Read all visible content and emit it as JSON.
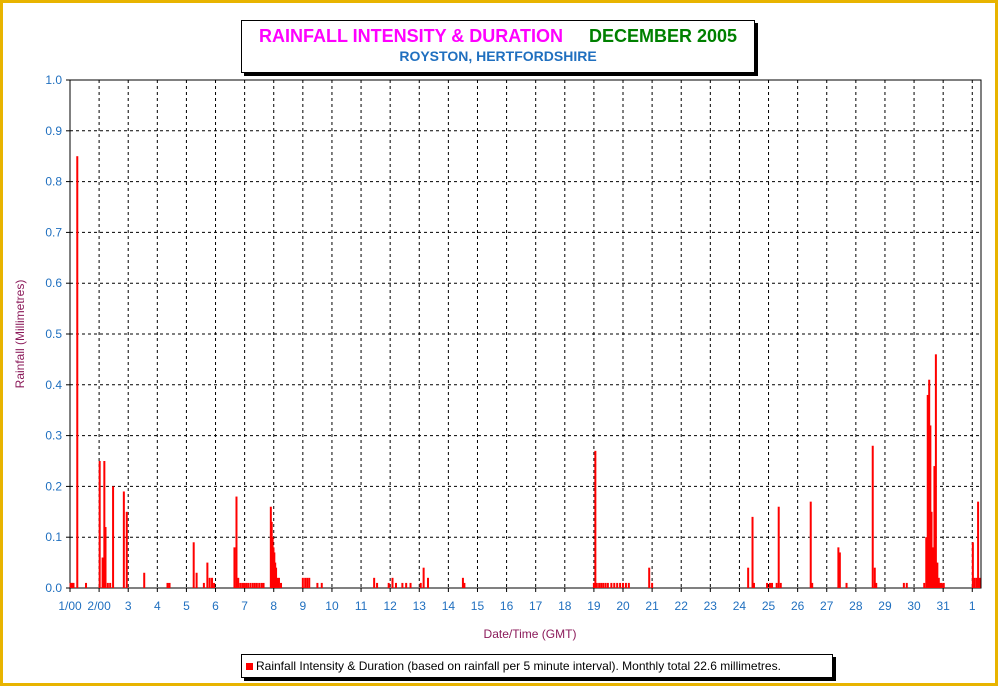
{
  "chart_data": {
    "type": "bar",
    "title": "RAINFALL INTENSITY & DURATION",
    "title_month": "DECEMBER 2005",
    "subtitle": "ROYSTON, HERTFORDSHIRE",
    "xlabel": "Date/Time (GMT)",
    "ylabel": "Rainfall (Millimetres)",
    "ylim": [
      0,
      1.0
    ],
    "xlim": [
      1,
      32.3
    ],
    "y_ticks": [
      "0.0",
      "0.1",
      "0.2",
      "0.3",
      "0.4",
      "0.5",
      "0.6",
      "0.7",
      "0.8",
      "0.9",
      "1.0"
    ],
    "x_ticks": [
      {
        "x": 1,
        "label": "1/00"
      },
      {
        "x": 2,
        "label": "2/00"
      },
      {
        "x": 3,
        "label": "3"
      },
      {
        "x": 4,
        "label": "4"
      },
      {
        "x": 5,
        "label": "5"
      },
      {
        "x": 6,
        "label": "6"
      },
      {
        "x": 7,
        "label": "7"
      },
      {
        "x": 8,
        "label": "8"
      },
      {
        "x": 9,
        "label": "9"
      },
      {
        "x": 10,
        "label": "10"
      },
      {
        "x": 11,
        "label": "11"
      },
      {
        "x": 12,
        "label": "12"
      },
      {
        "x": 13,
        "label": "13"
      },
      {
        "x": 14,
        "label": "14"
      },
      {
        "x": 15,
        "label": "15"
      },
      {
        "x": 16,
        "label": "16"
      },
      {
        "x": 17,
        "label": "17"
      },
      {
        "x": 18,
        "label": "18"
      },
      {
        "x": 19,
        "label": "19"
      },
      {
        "x": 20,
        "label": "20"
      },
      {
        "x": 21,
        "label": "21"
      },
      {
        "x": 22,
        "label": "22"
      },
      {
        "x": 23,
        "label": "23"
      },
      {
        "x": 24,
        "label": "24"
      },
      {
        "x": 25,
        "label": "25"
      },
      {
        "x": 26,
        "label": "26"
      },
      {
        "x": 27,
        "label": "27"
      },
      {
        "x": 28,
        "label": "28"
      },
      {
        "x": 29,
        "label": "29"
      },
      {
        "x": 30,
        "label": "30"
      },
      {
        "x": 31,
        "label": "31"
      },
      {
        "x": 32,
        "label": "1"
      }
    ],
    "grid": true,
    "legend_position": "bottom",
    "series": [
      {
        "name": "Rainfall Intensity & Duration (based on rainfall per 5 minute interval). Monthly total 22.6 millimetres.",
        "color": "#ff0000",
        "points": [
          {
            "x": 1.02,
            "y": 0.01
          },
          {
            "x": 1.05,
            "y": 0.01
          },
          {
            "x": 1.09,
            "y": 0.01
          },
          {
            "x": 1.12,
            "y": 0.01
          },
          {
            "x": 1.25,
            "y": 0.85
          },
          {
            "x": 1.55,
            "y": 0.01
          },
          {
            "x": 2.02,
            "y": 0.25
          },
          {
            "x": 2.12,
            "y": 0.06
          },
          {
            "x": 2.18,
            "y": 0.25
          },
          {
            "x": 2.22,
            "y": 0.12
          },
          {
            "x": 2.3,
            "y": 0.01
          },
          {
            "x": 2.38,
            "y": 0.01
          },
          {
            "x": 2.48,
            "y": 0.2
          },
          {
            "x": 2.85,
            "y": 0.19
          },
          {
            "x": 2.95,
            "y": 0.15
          },
          {
            "x": 3.55,
            "y": 0.03
          },
          {
            "x": 4.35,
            "y": 0.01
          },
          {
            "x": 4.42,
            "y": 0.01
          },
          {
            "x": 5.25,
            "y": 0.09
          },
          {
            "x": 5.35,
            "y": 0.03
          },
          {
            "x": 5.6,
            "y": 0.01
          },
          {
            "x": 5.72,
            "y": 0.05
          },
          {
            "x": 5.8,
            "y": 0.02
          },
          {
            "x": 5.88,
            "y": 0.02
          },
          {
            "x": 5.95,
            "y": 0.01
          },
          {
            "x": 6.65,
            "y": 0.08
          },
          {
            "x": 6.72,
            "y": 0.18
          },
          {
            "x": 6.78,
            "y": 0.02
          },
          {
            "x": 6.85,
            "y": 0.01
          },
          {
            "x": 6.92,
            "y": 0.01
          },
          {
            "x": 6.98,
            "y": 0.01
          },
          {
            "x": 7.05,
            "y": 0.01
          },
          {
            "x": 7.12,
            "y": 0.01
          },
          {
            "x": 7.2,
            "y": 0.01
          },
          {
            "x": 7.28,
            "y": 0.01
          },
          {
            "x": 7.35,
            "y": 0.01
          },
          {
            "x": 7.42,
            "y": 0.01
          },
          {
            "x": 7.5,
            "y": 0.01
          },
          {
            "x": 7.58,
            "y": 0.01
          },
          {
            "x": 7.65,
            "y": 0.01
          },
          {
            "x": 7.9,
            "y": 0.16
          },
          {
            "x": 7.93,
            "y": 0.13
          },
          {
            "x": 7.96,
            "y": 0.1
          },
          {
            "x": 7.99,
            "y": 0.08
          },
          {
            "x": 8.02,
            "y": 0.07
          },
          {
            "x": 8.05,
            "y": 0.05
          },
          {
            "x": 8.08,
            "y": 0.04
          },
          {
            "x": 8.12,
            "y": 0.02
          },
          {
            "x": 8.18,
            "y": 0.02
          },
          {
            "x": 8.25,
            "y": 0.01
          },
          {
            "x": 9.0,
            "y": 0.02
          },
          {
            "x": 9.08,
            "y": 0.02
          },
          {
            "x": 9.15,
            "y": 0.02
          },
          {
            "x": 9.22,
            "y": 0.02
          },
          {
            "x": 9.5,
            "y": 0.01
          },
          {
            "x": 9.65,
            "y": 0.01
          },
          {
            "x": 11.45,
            "y": 0.02
          },
          {
            "x": 11.55,
            "y": 0.01
          },
          {
            "x": 11.95,
            "y": 0.01
          },
          {
            "x": 12.08,
            "y": 0.02
          },
          {
            "x": 12.2,
            "y": 0.01
          },
          {
            "x": 12.42,
            "y": 0.01
          },
          {
            "x": 12.55,
            "y": 0.01
          },
          {
            "x": 12.7,
            "y": 0.01
          },
          {
            "x": 13.05,
            "y": 0.01
          },
          {
            "x": 13.15,
            "y": 0.04
          },
          {
            "x": 13.3,
            "y": 0.02
          },
          {
            "x": 14.5,
            "y": 0.02
          },
          {
            "x": 14.55,
            "y": 0.01
          },
          {
            "x": 19.0,
            "y": 0.01
          },
          {
            "x": 19.05,
            "y": 0.27
          },
          {
            "x": 19.1,
            "y": 0.01
          },
          {
            "x": 19.18,
            "y": 0.01
          },
          {
            "x": 19.25,
            "y": 0.01
          },
          {
            "x": 19.32,
            "y": 0.01
          },
          {
            "x": 19.4,
            "y": 0.01
          },
          {
            "x": 19.48,
            "y": 0.01
          },
          {
            "x": 19.6,
            "y": 0.01
          },
          {
            "x": 19.7,
            "y": 0.01
          },
          {
            "x": 19.8,
            "y": 0.01
          },
          {
            "x": 19.9,
            "y": 0.01
          },
          {
            "x": 20.0,
            "y": 0.01
          },
          {
            "x": 20.1,
            "y": 0.01
          },
          {
            "x": 20.2,
            "y": 0.01
          },
          {
            "x": 20.9,
            "y": 0.04
          },
          {
            "x": 21.0,
            "y": 0.01
          },
          {
            "x": 24.3,
            "y": 0.04
          },
          {
            "x": 24.45,
            "y": 0.14
          },
          {
            "x": 24.5,
            "y": 0.01
          },
          {
            "x": 24.95,
            "y": 0.01
          },
          {
            "x": 25.05,
            "y": 0.01
          },
          {
            "x": 25.12,
            "y": 0.01
          },
          {
            "x": 25.28,
            "y": 0.01
          },
          {
            "x": 25.35,
            "y": 0.16
          },
          {
            "x": 25.42,
            "y": 0.01
          },
          {
            "x": 26.45,
            "y": 0.17
          },
          {
            "x": 26.5,
            "y": 0.01
          },
          {
            "x": 27.4,
            "y": 0.08
          },
          {
            "x": 27.45,
            "y": 0.07
          },
          {
            "x": 27.68,
            "y": 0.01
          },
          {
            "x": 28.58,
            "y": 0.28
          },
          {
            "x": 28.65,
            "y": 0.04
          },
          {
            "x": 28.7,
            "y": 0.01
          },
          {
            "x": 29.65,
            "y": 0.01
          },
          {
            "x": 29.75,
            "y": 0.01
          },
          {
            "x": 30.35,
            "y": 0.01
          },
          {
            "x": 30.42,
            "y": 0.1
          },
          {
            "x": 30.47,
            "y": 0.38
          },
          {
            "x": 30.52,
            "y": 0.41
          },
          {
            "x": 30.56,
            "y": 0.32
          },
          {
            "x": 30.6,
            "y": 0.15
          },
          {
            "x": 30.64,
            "y": 0.08
          },
          {
            "x": 30.7,
            "y": 0.24
          },
          {
            "x": 30.75,
            "y": 0.46
          },
          {
            "x": 30.8,
            "y": 0.05
          },
          {
            "x": 30.85,
            "y": 0.02
          },
          {
            "x": 30.9,
            "y": 0.01
          },
          {
            "x": 30.95,
            "y": 0.01
          },
          {
            "x": 31.02,
            "y": 0.01
          },
          {
            "x": 32.02,
            "y": 0.09
          },
          {
            "x": 32.08,
            "y": 0.02
          },
          {
            "x": 32.15,
            "y": 0.02
          },
          {
            "x": 32.2,
            "y": 0.17
          },
          {
            "x": 32.25,
            "y": 0.02
          }
        ]
      }
    ]
  }
}
